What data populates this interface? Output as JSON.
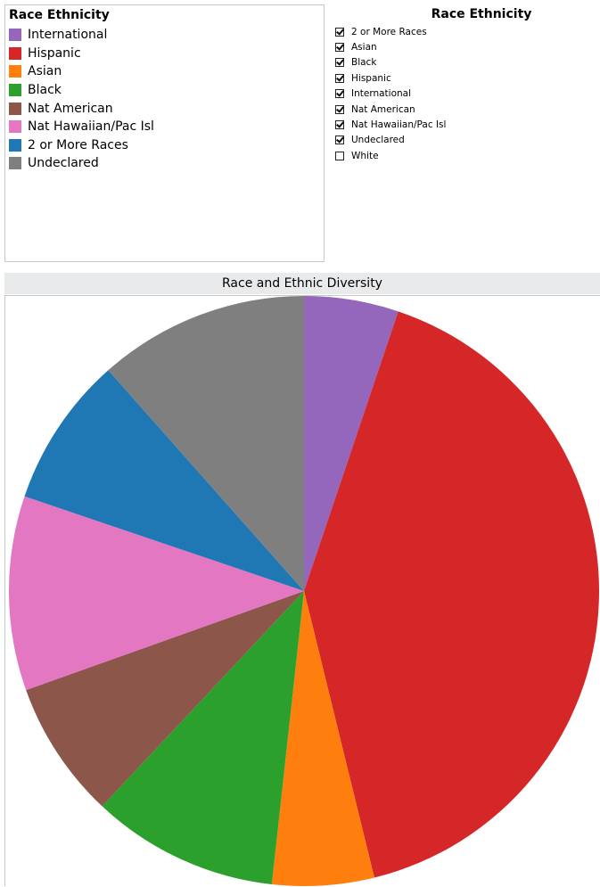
{
  "legend": {
    "title": "Race Ethnicity",
    "items": [
      {
        "label": "International",
        "color": "#9467bd"
      },
      {
        "label": "Hispanic",
        "color": "#d62728"
      },
      {
        "label": "Asian",
        "color": "#ff7f0e"
      },
      {
        "label": "Black",
        "color": "#2ca02c"
      },
      {
        "label": "Nat American",
        "color": "#8c564b"
      },
      {
        "label": "Nat Hawaiian/Pac Isl",
        "color": "#e377c2"
      },
      {
        "label": "2 or More Races",
        "color": "#1f77b4"
      },
      {
        "label": "Undeclared",
        "color": "#7f7f7f"
      }
    ]
  },
  "filter": {
    "title": "Race Ethnicity",
    "items": [
      {
        "label": "2 or More Races",
        "checked": true
      },
      {
        "label": "Asian",
        "checked": true
      },
      {
        "label": "Black",
        "checked": true
      },
      {
        "label": "Hispanic",
        "checked": true
      },
      {
        "label": "International",
        "checked": true
      },
      {
        "label": "Nat American",
        "checked": true
      },
      {
        "label": "Nat Hawaiian/Pac Isl",
        "checked": true
      },
      {
        "label": "Undeclared",
        "checked": true
      },
      {
        "label": "White",
        "checked": false
      }
    ]
  },
  "chart_data": {
    "type": "pie",
    "title": "Race and Ethnic Diversity",
    "slices": [
      {
        "label": "International",
        "value": 5.2,
        "color": "#9467bd"
      },
      {
        "label": "Hispanic",
        "value": 41.2,
        "color": "#d62728"
      },
      {
        "label": "Asian",
        "value": 5.6,
        "color": "#ff7f0e"
      },
      {
        "label": "Black",
        "value": 10.3,
        "color": "#2ca02c"
      },
      {
        "label": "Nat American",
        "value": 7.6,
        "color": "#8c564b"
      },
      {
        "label": "Nat Hawaiian/Pac Isl",
        "value": 10.7,
        "color": "#e377c2"
      },
      {
        "label": "2 or More Races",
        "value": 8.3,
        "color": "#1f77b4"
      },
      {
        "label": "Undeclared",
        "value": 11.6,
        "color": "#7f7f7f"
      }
    ]
  }
}
